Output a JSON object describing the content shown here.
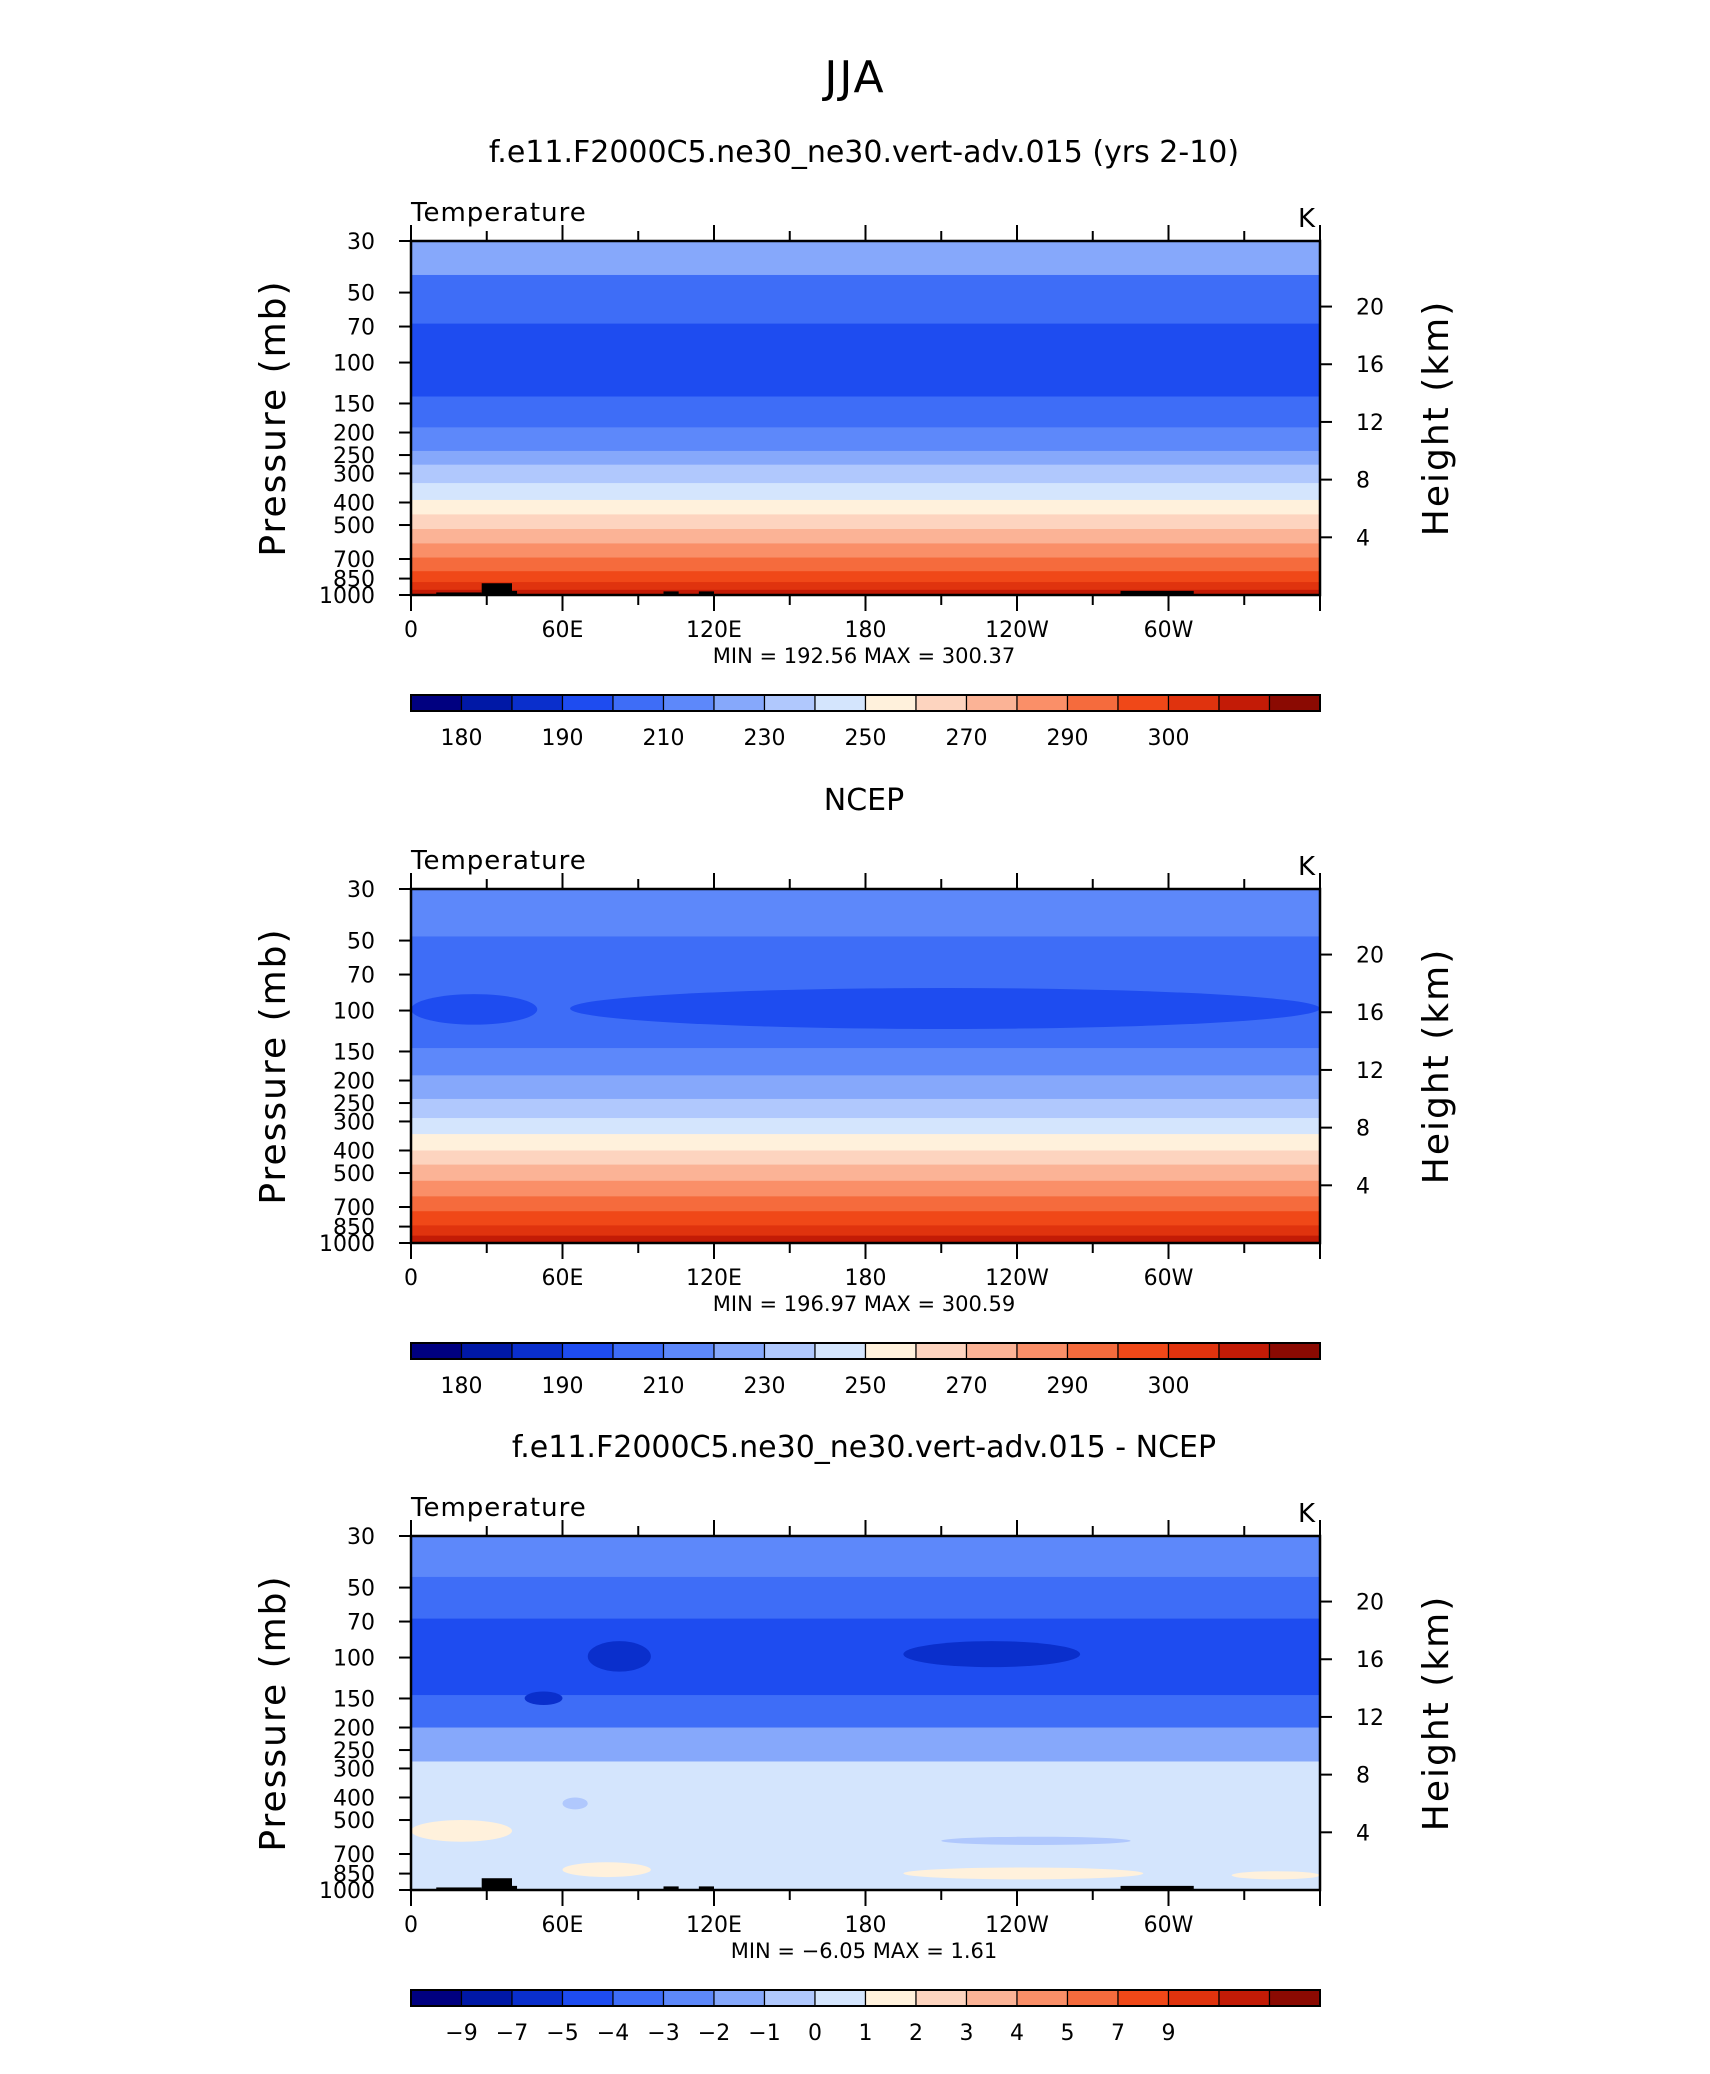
{
  "figure": {
    "title": "JJA",
    "panels_order": [
      "model",
      "ncep",
      "diff"
    ]
  },
  "colors": {
    "tempLevels": [
      "#000080",
      "#0018a6",
      "#0a2fcc",
      "#1e4cf0",
      "#3e6df7",
      "#5d88fa",
      "#86a8fb",
      "#b0c8fd",
      "#d4e5fd",
      "#fff1dc",
      "#fdd4bf",
      "#fbb396",
      "#fa8f68",
      "#f56b3d",
      "#f04818",
      "#e0330e",
      "#c31b06",
      "#8b0a02"
    ],
    "diffLevels": [
      "#000080",
      "#0018a6",
      "#0a2fcc",
      "#1e4cf0",
      "#3e6df7",
      "#5d88fa",
      "#86a8fb",
      "#b0c8fd",
      "#d4e5fd",
      "#fff1dc",
      "#fdd4bf",
      "#fbb396",
      "#fa8f68",
      "#f56b3d",
      "#f04818",
      "#e0330e",
      "#c31b06",
      "#8b0a02"
    ],
    "topography": "#000000"
  },
  "chart_data": [
    {
      "type": "heatmap",
      "id": "model",
      "title": "f.e11.F2000C5.ne30_ne30.vert-adv.015 (yrs 2-10)",
      "left_label": "Temperature",
      "units": "K",
      "ylabel": "Pressure  (mb)",
      "y2label": "Height  (km)",
      "xlim": [
        0,
        360
      ],
      "ylim_mb": [
        1000,
        30
      ],
      "yscale": "log",
      "x_ticks": [
        "0",
        "60E",
        "120E",
        "180",
        "120W",
        "60W"
      ],
      "y_ticks_mb": [
        "30",
        "50",
        "70",
        "100",
        "150",
        "200",
        "250",
        "300",
        "400",
        "500",
        "700",
        "850",
        "1000"
      ],
      "y2_ticks_km": [
        "20",
        "16",
        "12",
        "8",
        "4"
      ],
      "min_label": "MIN = ",
      "min": "192.56",
      "max_label": "MAX = ",
      "max": "300.37",
      "colorbar_labels": [
        "180",
        "190",
        "210",
        "230",
        "250",
        "270",
        "290",
        "300"
      ],
      "bands_mb": [
        {
          "p": [
            30,
            42
          ],
          "level": 6
        },
        {
          "p": [
            42,
            68
          ],
          "level": 4
        },
        {
          "p": [
            68,
            140
          ],
          "level": 3
        },
        {
          "p": [
            140,
            190
          ],
          "level": 4
        },
        {
          "p": [
            190,
            240
          ],
          "level": 5
        },
        {
          "p": [
            240,
            275
          ],
          "level": 6
        },
        {
          "p": [
            275,
            330
          ],
          "level": 7
        },
        {
          "p": [
            330,
            390
          ],
          "level": 8
        },
        {
          "p": [
            390,
            450
          ],
          "level": 9
        },
        {
          "p": [
            450,
            520
          ],
          "level": 10
        },
        {
          "p": [
            520,
            600
          ],
          "level": 11
        },
        {
          "p": [
            600,
            690
          ],
          "level": 12
        },
        {
          "p": [
            690,
            790
          ],
          "level": 13
        },
        {
          "p": [
            790,
            880
          ],
          "level": 14
        },
        {
          "p": [
            880,
            950
          ],
          "level": 15
        },
        {
          "p": [
            950,
            1000
          ],
          "level": 16
        }
      ],
      "topography": [
        {
          "lon": [
            10,
            28
          ],
          "p": 975
        },
        {
          "lon": [
            28,
            40
          ],
          "p": 890
        },
        {
          "lon": [
            40,
            42
          ],
          "p": 960
        },
        {
          "lon": [
            100,
            106
          ],
          "p": 965
        },
        {
          "lon": [
            114,
            120
          ],
          "p": 965
        },
        {
          "lon": [
            281,
            310
          ],
          "p": 960
        }
      ]
    },
    {
      "type": "heatmap",
      "id": "ncep",
      "title": "NCEP",
      "left_label": "Temperature",
      "units": "K",
      "ylabel": "Pressure  (mb)",
      "y2label": "Height  (km)",
      "xlim": [
        0,
        360
      ],
      "ylim_mb": [
        1000,
        30
      ],
      "yscale": "log",
      "x_ticks": [
        "0",
        "60E",
        "120E",
        "180",
        "120W",
        "60W"
      ],
      "y_ticks_mb": [
        "30",
        "50",
        "70",
        "100",
        "150",
        "200",
        "250",
        "300",
        "400",
        "500",
        "700",
        "850",
        "1000"
      ],
      "y2_ticks_km": [
        "20",
        "16",
        "12",
        "8",
        "4"
      ],
      "min_label": "MIN = ",
      "min": "196.97",
      "max_label": "MAX = ",
      "max": "300.59",
      "colorbar_labels": [
        "180",
        "190",
        "210",
        "230",
        "250",
        "270",
        "290",
        "300"
      ],
      "bands_mb": [
        {
          "p": [
            30,
            48
          ],
          "level": 5
        },
        {
          "p": [
            48,
            145
          ],
          "level": 4
        },
        {
          "p": [
            145,
            190
          ],
          "level": 5
        },
        {
          "p": [
            190,
            240
          ],
          "level": 6
        },
        {
          "p": [
            240,
            290
          ],
          "level": 7
        },
        {
          "p": [
            290,
            340
          ],
          "level": 8
        },
        {
          "p": [
            340,
            400
          ],
          "level": 9
        },
        {
          "p": [
            400,
            460
          ],
          "level": 10
        },
        {
          "p": [
            460,
            540
          ],
          "level": 11
        },
        {
          "p": [
            540,
            630
          ],
          "level": 12
        },
        {
          "p": [
            630,
            730
          ],
          "level": 13
        },
        {
          "p": [
            730,
            840
          ],
          "level": 14
        },
        {
          "p": [
            840,
            930
          ],
          "level": 15
        },
        {
          "p": [
            930,
            1000
          ],
          "level": 16
        }
      ],
      "blobs_mb": [
        {
          "lon": [
            0,
            50
          ],
          "p": [
            85,
            115
          ],
          "level": 3
        },
        {
          "lon": [
            63,
            360
          ],
          "p": [
            80,
            120
          ],
          "level": 3
        }
      ],
      "topography": []
    },
    {
      "type": "heatmap",
      "id": "diff",
      "title": "f.e11.F2000C5.ne30_ne30.vert-adv.015 - NCEP",
      "left_label": "Temperature",
      "units": "K",
      "ylabel": "Pressure  (mb)",
      "y2label": "Height  (km)",
      "xlim": [
        0,
        360
      ],
      "ylim_mb": [
        1000,
        30
      ],
      "yscale": "log",
      "x_ticks": [
        "0",
        "60E",
        "120E",
        "180",
        "120W",
        "60W"
      ],
      "y_ticks_mb": [
        "30",
        "50",
        "70",
        "100",
        "150",
        "200",
        "250",
        "300",
        "400",
        "500",
        "700",
        "850",
        "1000"
      ],
      "y2_ticks_km": [
        "20",
        "16",
        "12",
        "8",
        "4"
      ],
      "min_label": "MIN = ",
      "min": "−6.05",
      "max_label": "MAX = ",
      "max": "1.61",
      "colorbar_labels": [
        "−9",
        "−7",
        "−5",
        "−4",
        "−3",
        "−2",
        "−1",
        "0",
        "1",
        "2",
        "3",
        "4",
        "5",
        "7",
        "9"
      ],
      "bands_mb": [
        {
          "p": [
            30,
            45
          ],
          "level": 5
        },
        {
          "p": [
            45,
            68
          ],
          "level": 4
        },
        {
          "p": [
            68,
            145
          ],
          "level": 3
        },
        {
          "p": [
            145,
            200
          ],
          "level": 4
        },
        {
          "p": [
            200,
            280
          ],
          "level": 6
        },
        {
          "p": [
            280,
            1000
          ],
          "level": 8
        }
      ],
      "blobs_mb": [
        {
          "lon": [
            195,
            265
          ],
          "p": [
            85,
            110
          ],
          "level": 2
        },
        {
          "lon": [
            70,
            95
          ],
          "p": [
            85,
            115
          ],
          "level": 2
        },
        {
          "lon": [
            45,
            60
          ],
          "p": [
            140,
            160
          ],
          "level": 2
        },
        {
          "lon": [
            0,
            40
          ],
          "p": [
            500,
            620
          ],
          "level": 9
        },
        {
          "lon": [
            60,
            95
          ],
          "p": [
            760,
            880
          ],
          "level": 9
        },
        {
          "lon": [
            195,
            290
          ],
          "p": [
            800,
            900
          ],
          "level": 9
        },
        {
          "lon": [
            325,
            360
          ],
          "p": [
            830,
            900
          ],
          "level": 9
        },
        {
          "lon": [
            210,
            285
          ],
          "p": [
            590,
            640
          ],
          "level": 7
        },
        {
          "lon": [
            60,
            70
          ],
          "p": [
            400,
            450
          ],
          "level": 7
        }
      ],
      "topography": [
        {
          "lon": [
            10,
            28
          ],
          "p": 975
        },
        {
          "lon": [
            28,
            40
          ],
          "p": 890
        },
        {
          "lon": [
            40,
            42
          ],
          "p": 960
        },
        {
          "lon": [
            100,
            106
          ],
          "p": 965
        },
        {
          "lon": [
            114,
            120
          ],
          "p": 965
        },
        {
          "lon": [
            281,
            310
          ],
          "p": 960
        }
      ]
    }
  ]
}
